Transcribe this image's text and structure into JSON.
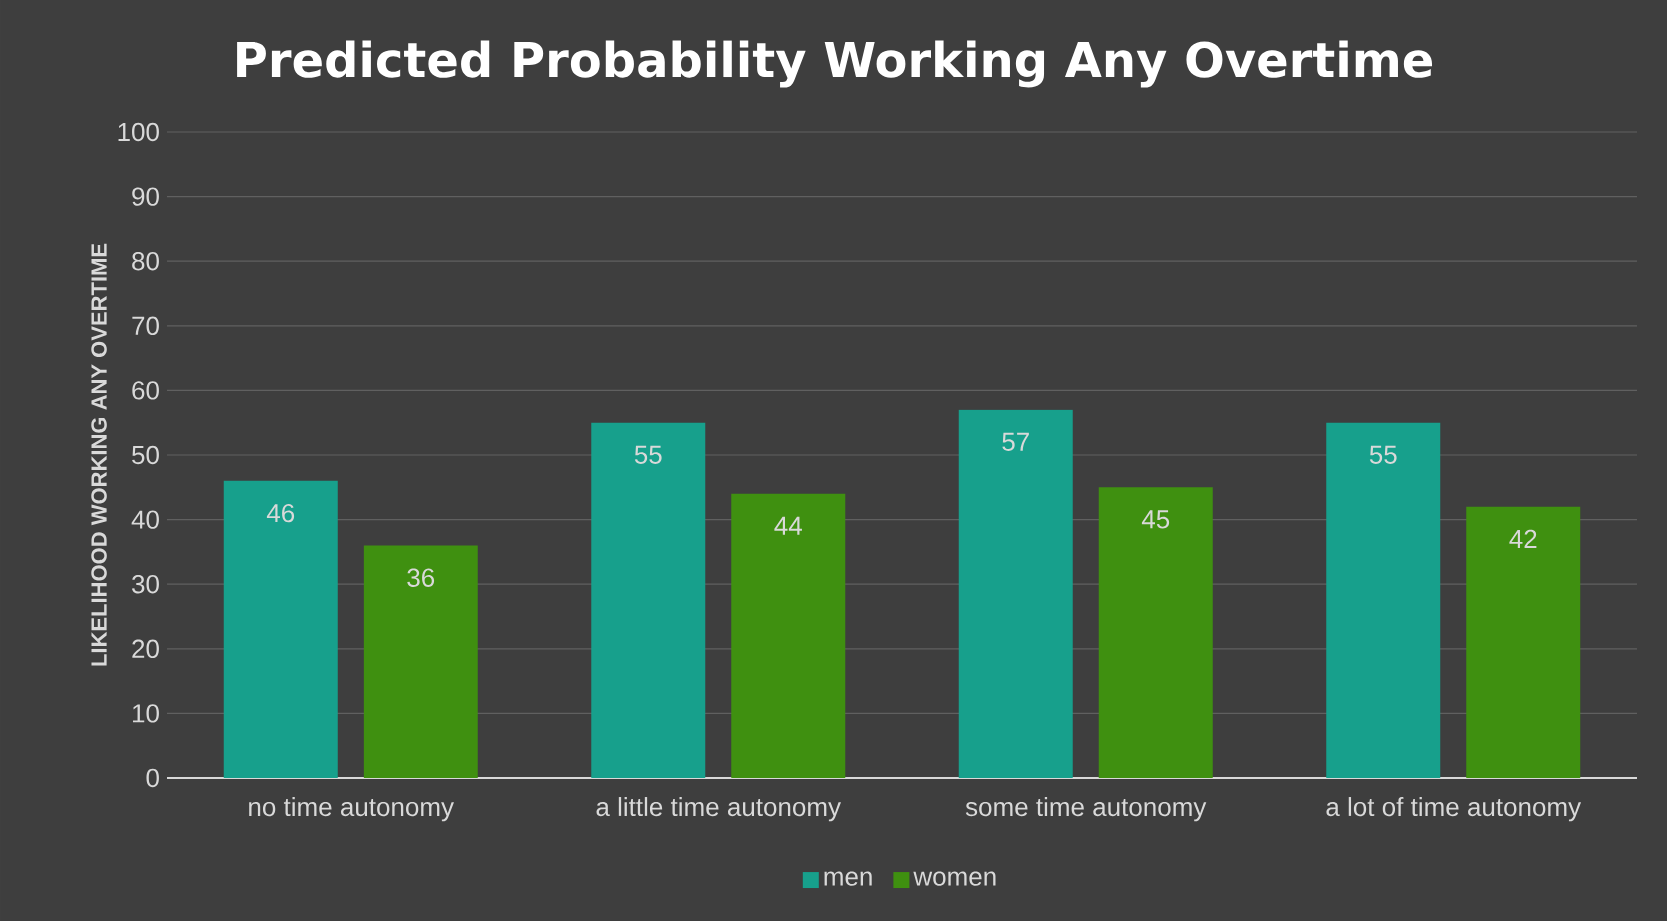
{
  "chart_data": {
    "type": "bar",
    "title": "Predicted Probability Working Any Overtime",
    "ylabel": "LIKELIHOOD WORKING ANY OVERTIME",
    "categories": [
      "no time autonomy",
      "a little time autonomy",
      "some time autonomy",
      "a lot of time autonomy"
    ],
    "series": [
      {
        "name": "men",
        "color": "#17a08c",
        "values": [
          46,
          55,
          57,
          55
        ]
      },
      {
        "name": "women",
        "color": "#3f9010",
        "values": [
          36,
          44,
          45,
          42
        ]
      }
    ],
    "ylim": [
      0,
      100
    ],
    "yticks": [
      0,
      10,
      20,
      30,
      40,
      50,
      60,
      70,
      80,
      90,
      100
    ],
    "grid": "y",
    "legend": "bottom",
    "data_labels": true
  }
}
